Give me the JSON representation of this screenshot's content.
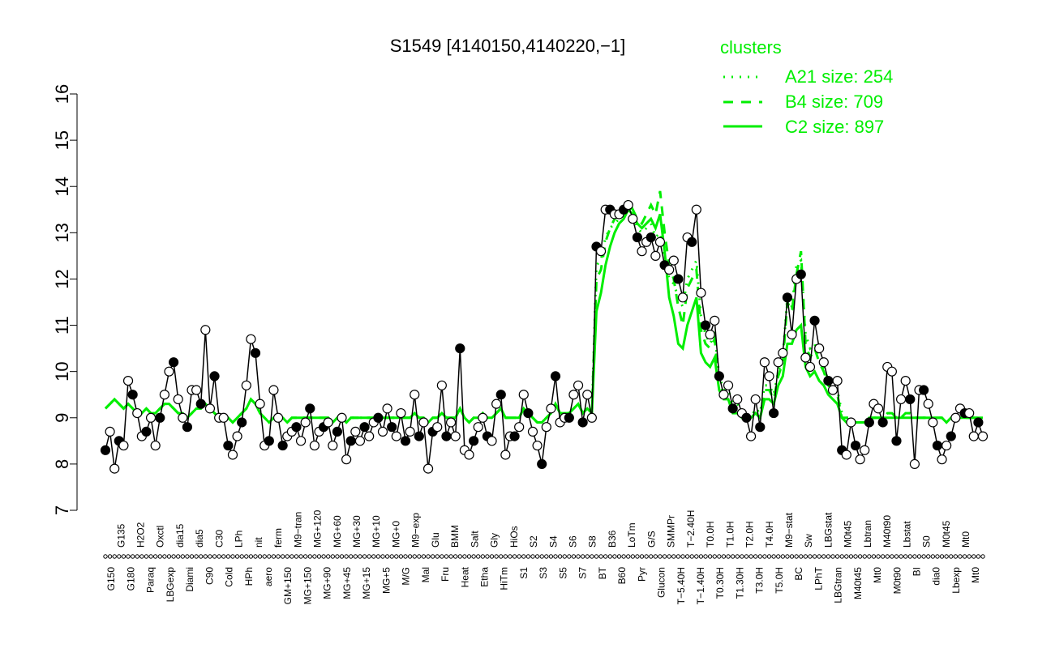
{
  "chart_data": {
    "type": "line",
    "title": "S1549 [4140150,4140220,−1]",
    "xlabel": "",
    "ylabel": "",
    "ylim": [
      7,
      16
    ],
    "yticks": [
      7,
      8,
      9,
      10,
      11,
      12,
      13,
      14,
      15,
      16
    ],
    "grid": false,
    "legend": {
      "title": "clusters",
      "placement": "top-right",
      "color": "#00ee00",
      "entries": [
        {
          "label": "A21 size: 254",
          "style": "dotted"
        },
        {
          "label": "B4 size: 709",
          "style": "dashed"
        },
        {
          "label": "C2 size: 897",
          "style": "solid"
        }
      ]
    },
    "x_tick_labels": [
      "G150",
      "G135",
      "G180",
      "H2O2",
      "Paraq",
      "Oxctl",
      "LBGexp",
      "dia15",
      "Diami",
      "dia5",
      "C90",
      "C30",
      "Cold",
      "LPh",
      "HPh",
      "nit",
      "aero",
      "ferm",
      "GM+150",
      "M9−tran",
      "MG+150",
      "MG+120",
      "MG+90",
      "MG+60",
      "MG+45",
      "MG+30",
      "MG+15",
      "MG+10",
      "MG+5",
      "MG+0",
      "M/G",
      "M9−exp",
      "Mal",
      "Glu",
      "Fru",
      "BMM",
      "Heat",
      "Salt",
      "Etha",
      "Gly",
      "HiTm",
      "HiOs",
      "S1",
      "S2",
      "S3",
      "S4",
      "S5",
      "S6",
      "S7",
      "S8",
      "BT",
      "B36",
      "B60",
      "LoTm",
      "Pyr",
      "G/S",
      "Glucon",
      "SMMPr",
      "T−5.40H",
      "T−2.40H",
      "T−1.40H",
      "T0.0H",
      "T0.30H",
      "T1.0H",
      "T1.30H",
      "T2.0H",
      "T3.0H",
      "T4.0H",
      "T5.0H",
      "M9−stat",
      "BC",
      "Sw",
      "LPhT",
      "LBGstat",
      "LBGtran",
      "M0t45",
      "M40t45",
      "Lbtran",
      "Mt0",
      "M40t90",
      "M0t90",
      "Lbstat",
      "BI",
      "S0",
      "dia0",
      "M0t45",
      "Lbexp",
      "Mt0",
      "Mt0"
    ],
    "series": [
      {
        "name": "S1549",
        "color": "#000000",
        "values": [
          8.3,
          8.7,
          7.9,
          8.5,
          8.4,
          9.8,
          9.5,
          9.1,
          8.6,
          8.7,
          9.0,
          8.4,
          9.0,
          9.5,
          10.0,
          10.2,
          9.4,
          9.0,
          8.8,
          9.6,
          9.6,
          9.3,
          10.9,
          9.2,
          9.9,
          9.0,
          9.0,
          8.4,
          8.2,
          8.6,
          8.9,
          9.7,
          10.7,
          10.4,
          9.3,
          8.4,
          8.5,
          9.6,
          9.0,
          8.4,
          8.6,
          8.7,
          8.8,
          8.5,
          8.9,
          9.2,
          8.4,
          8.7,
          8.8,
          8.9,
          8.4,
          8.7,
          9.0,
          8.1,
          8.5,
          8.7,
          8.5,
          8.8,
          8.6,
          8.9,
          9.0,
          8.7,
          9.2,
          8.8,
          8.6,
          9.1,
          8.5,
          8.7,
          9.5,
          8.6,
          8.9,
          7.9,
          8.7,
          8.8,
          9.7,
          8.6,
          8.9,
          8.6,
          10.5,
          8.3,
          8.2,
          8.5,
          8.8,
          9.0,
          8.6,
          8.5,
          9.3,
          9.5,
          8.2,
          8.6,
          8.6,
          8.8,
          9.5,
          9.1,
          8.7,
          8.4,
          8.0,
          8.8,
          9.2,
          9.9,
          8.9,
          9.0,
          9.0,
          9.5,
          9.7,
          8.9,
          9.5,
          9.0,
          12.7,
          12.6,
          13.5,
          13.5,
          13.4,
          13.4,
          13.5,
          13.6,
          13.3,
          12.9,
          12.6,
          12.8,
          12.9,
          12.5,
          12.8,
          12.3,
          12.2,
          12.4,
          12.0,
          11.6,
          12.9,
          12.8,
          13.5,
          11.7,
          11.0,
          10.8,
          11.1,
          9.9,
          9.5,
          9.7,
          9.2,
          9.4,
          9.1,
          9.0,
          8.6,
          9.4,
          8.8,
          10.2,
          9.9,
          9.1,
          10.2,
          10.4,
          11.6,
          10.8,
          12.0,
          12.1,
          10.3,
          10.1,
          11.1,
          10.5,
          10.2,
          9.8,
          9.6,
          9.8,
          8.3,
          8.2,
          8.9,
          8.4,
          8.1,
          8.3,
          8.9,
          9.3,
          9.2,
          8.9,
          10.1,
          10.0,
          8.5,
          9.4,
          9.8,
          9.4,
          8.0,
          9.6,
          9.6,
          9.3,
          8.9,
          8.4,
          8.1,
          8.4,
          8.6,
          9.0,
          9.2,
          9.1,
          9.1,
          8.6,
          8.9,
          8.6
        ]
      },
      {
        "name": "A21 size: 254",
        "color": "#00ee00",
        "style": "dotted",
        "values": [
          9.2,
          9.3,
          9.4,
          9.3,
          9.2,
          9.3,
          9.2,
          9.1,
          9.1,
          9.2,
          9.1,
          9.1,
          9.2,
          9.3,
          9.3,
          9.2,
          9.1,
          9.1,
          9.0,
          9.1,
          9.2,
          9.2,
          9.3,
          9.2,
          9.1,
          9.0,
          9.0,
          9.0,
          8.9,
          9.0,
          9.1,
          9.2,
          9.4,
          9.3,
          9.1,
          9.0,
          8.9,
          9.0,
          9.0,
          9.0,
          8.9,
          9.0,
          9.0,
          9.0,
          9.0,
          9.0,
          9.0,
          9.0,
          9.0,
          9.0,
          8.9,
          9.0,
          9.0,
          8.9,
          9.0,
          9.0,
          9.0,
          9.0,
          9.0,
          9.0,
          9.0,
          9.0,
          9.0,
          9.0,
          9.0,
          9.0,
          9.0,
          9.0,
          9.1,
          9.0,
          9.0,
          8.9,
          9.0,
          9.0,
          9.1,
          9.0,
          9.0,
          9.0,
          9.2,
          9.0,
          8.9,
          9.0,
          9.0,
          9.1,
          9.0,
          9.0,
          9.1,
          9.2,
          9.0,
          9.0,
          9.0,
          9.0,
          9.2,
          9.1,
          9.0,
          8.9,
          8.9,
          9.0,
          9.1,
          9.3,
          9.1,
          9.1,
          9.1,
          9.2,
          9.3,
          9.1,
          9.2,
          9.1,
          12.3,
          12.4,
          12.9,
          13.1,
          13.2,
          13.3,
          13.4,
          13.6,
          13.4,
          13.1,
          13.0,
          13.1,
          13.2,
          12.9,
          13.0,
          12.5,
          12.0,
          11.9,
          11.6,
          11.4,
          12.0,
          12.2,
          12.4,
          11.2,
          10.8,
          10.6,
          10.8,
          9.9,
          9.6,
          9.6,
          9.3,
          9.3,
          9.2,
          9.1,
          9.0,
          9.2,
          9.1,
          9.7,
          9.7,
          9.5,
          10.0,
          10.3,
          11.6,
          11.4,
          12.3,
          12.4,
          10.8,
          10.5,
          10.6,
          10.3,
          10.1,
          9.8,
          9.7,
          9.6,
          9.1,
          9.0,
          9.0,
          8.9,
          8.9,
          8.9,
          9.0,
          9.0,
          9.0,
          9.0,
          9.1,
          9.1,
          9.0,
          9.0,
          9.1,
          9.1,
          9.0,
          9.0,
          9.0,
          9.0,
          9.0,
          9.0,
          9.0,
          8.9,
          9.0,
          9.0,
          9.0,
          9.0,
          9.0,
          9.0,
          9.0,
          9.0
        ]
      },
      {
        "name": "B4 size: 709",
        "color": "#00ee00",
        "style": "dashed",
        "values": [
          9.2,
          9.3,
          9.4,
          9.3,
          9.2,
          9.3,
          9.2,
          9.1,
          9.1,
          9.2,
          9.1,
          9.1,
          9.2,
          9.3,
          9.3,
          9.2,
          9.1,
          9.1,
          9.0,
          9.1,
          9.2,
          9.2,
          9.3,
          9.2,
          9.1,
          9.0,
          9.0,
          9.0,
          8.9,
          9.0,
          9.1,
          9.2,
          9.4,
          9.3,
          9.1,
          9.0,
          8.9,
          9.0,
          9.0,
          9.0,
          8.9,
          9.0,
          9.0,
          9.0,
          9.0,
          9.0,
          9.0,
          9.0,
          9.0,
          9.0,
          8.9,
          9.0,
          9.0,
          8.9,
          9.0,
          9.0,
          9.0,
          9.0,
          9.0,
          9.0,
          9.0,
          9.0,
          9.0,
          9.0,
          9.0,
          9.0,
          9.0,
          9.0,
          9.1,
          9.0,
          9.0,
          8.9,
          9.0,
          9.0,
          9.1,
          9.0,
          9.0,
          9.0,
          9.2,
          9.0,
          8.9,
          9.0,
          9.0,
          9.1,
          9.0,
          9.0,
          9.1,
          9.2,
          9.0,
          9.0,
          9.0,
          9.0,
          9.2,
          9.1,
          9.0,
          8.9,
          8.9,
          9.0,
          9.1,
          9.3,
          9.1,
          9.1,
          9.1,
          9.2,
          9.3,
          9.1,
          9.2,
          9.1,
          12.0,
          12.2,
          12.8,
          13.1,
          13.3,
          13.4,
          13.5,
          13.7,
          13.5,
          13.3,
          13.2,
          13.4,
          13.6,
          13.4,
          13.9,
          13.0,
          12.3,
          12.0,
          11.4,
          11.0,
          11.8,
          12.0,
          12.2,
          10.9,
          10.6,
          10.5,
          10.7,
          9.8,
          9.5,
          9.5,
          9.2,
          9.2,
          9.1,
          9.0,
          9.0,
          9.1,
          9.0,
          9.6,
          9.6,
          9.4,
          9.9,
          10.2,
          11.5,
          11.3,
          12.1,
          12.6,
          10.6,
          10.3,
          10.5,
          10.2,
          10.0,
          9.7,
          9.6,
          9.5,
          9.0,
          9.0,
          9.0,
          8.9,
          8.9,
          8.9,
          9.0,
          9.0,
          9.0,
          9.0,
          9.1,
          9.1,
          9.0,
          9.0,
          9.1,
          9.1,
          9.0,
          9.0,
          9.0,
          9.0,
          9.0,
          9.0,
          9.0,
          8.9,
          9.0,
          9.0,
          9.0,
          9.0,
          9.0,
          9.0,
          9.0,
          9.0
        ]
      },
      {
        "name": "C2 size: 897",
        "color": "#00ee00",
        "style": "solid",
        "values": [
          9.2,
          9.3,
          9.4,
          9.3,
          9.2,
          9.3,
          9.2,
          9.1,
          9.1,
          9.2,
          9.1,
          9.1,
          9.2,
          9.3,
          9.3,
          9.2,
          9.1,
          9.1,
          9.0,
          9.1,
          9.2,
          9.2,
          9.3,
          9.2,
          9.1,
          9.0,
          9.0,
          9.0,
          8.9,
          9.0,
          9.1,
          9.2,
          9.4,
          9.3,
          9.1,
          9.0,
          8.9,
          9.0,
          9.0,
          9.0,
          8.9,
          9.0,
          9.0,
          9.0,
          9.0,
          9.0,
          9.0,
          9.0,
          9.0,
          9.0,
          8.9,
          9.0,
          9.0,
          8.9,
          9.0,
          9.0,
          9.0,
          9.0,
          9.0,
          9.0,
          9.0,
          9.0,
          9.0,
          9.0,
          9.0,
          9.0,
          9.0,
          9.0,
          9.1,
          9.0,
          9.0,
          8.9,
          9.0,
          9.0,
          9.1,
          9.0,
          9.0,
          9.0,
          9.2,
          9.0,
          8.9,
          9.0,
          9.0,
          9.1,
          9.0,
          9.0,
          9.1,
          9.2,
          9.0,
          9.0,
          9.0,
          9.0,
          9.2,
          9.1,
          9.0,
          8.9,
          8.9,
          9.0,
          9.1,
          9.3,
          9.1,
          9.1,
          9.1,
          9.2,
          9.3,
          9.1,
          9.2,
          9.1,
          11.3,
          11.7,
          12.3,
          12.7,
          13.0,
          13.2,
          13.3,
          13.5,
          13.4,
          13.2,
          13.1,
          13.2,
          13.3,
          13.1,
          13.4,
          12.6,
          11.6,
          11.2,
          10.6,
          10.5,
          11.0,
          11.3,
          11.6,
          10.4,
          10.2,
          10.1,
          10.3,
          9.6,
          9.4,
          9.4,
          9.1,
          9.1,
          9.0,
          9.0,
          9.0,
          9.1,
          9.0,
          9.4,
          9.4,
          9.3,
          9.7,
          9.9,
          10.6,
          10.6,
          10.9,
          11.0,
          10.1,
          9.9,
          10.0,
          9.8,
          9.7,
          9.5,
          9.4,
          9.3,
          9.0,
          8.9,
          8.9,
          8.9,
          8.9,
          8.9,
          9.0,
          9.0,
          9.0,
          9.0,
          9.0,
          9.0,
          9.0,
          9.0,
          9.0,
          9.0,
          9.0,
          9.0,
          9.0,
          9.0,
          9.0,
          9.0,
          9.0,
          8.9,
          9.0,
          9.0,
          9.0,
          9.0,
          9.0,
          9.0,
          9.0,
          9.0
        ]
      }
    ]
  }
}
